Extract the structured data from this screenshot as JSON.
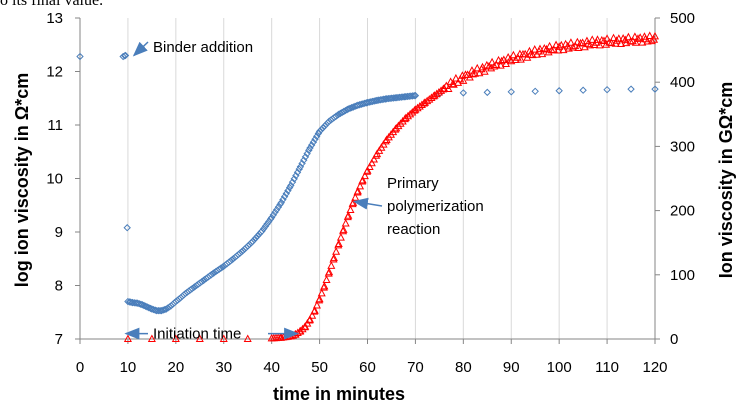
{
  "caption_fragment": "o its final value.",
  "chart_data": {
    "type": "scatter",
    "title": "",
    "xlabel": "time in minutes",
    "ylabel_left": "log ion viscosity in Ω*cm",
    "ylabel_right": "Ion viscosity in GΩ*cm",
    "xlim": [
      0,
      120
    ],
    "ylim_left": [
      7,
      13
    ],
    "ylim_right": [
      0,
      500
    ],
    "x_ticks": [
      0,
      10,
      20,
      30,
      40,
      50,
      60,
      70,
      80,
      90,
      100,
      110,
      120
    ],
    "y_left_ticks": [
      7,
      8,
      9,
      10,
      11,
      12,
      13
    ],
    "y_right_ticks": [
      0,
      100,
      200,
      300,
      400,
      500
    ],
    "grid": "vertical",
    "colors": {
      "log_series": "#4a7ebb",
      "linear_series": "#ff0000",
      "arrow": "#4a7ebb"
    },
    "series": [
      {
        "axis": "left",
        "marker": "diamond",
        "x": [
          0,
          9,
          9.5,
          10,
          10.5,
          11,
          12,
          13,
          14,
          15,
          16,
          17,
          18,
          19,
          20,
          21,
          22,
          24,
          26,
          28,
          30,
          32,
          34,
          36,
          38,
          40,
          42,
          44,
          46,
          48,
          50,
          52,
          54,
          56,
          58,
          60,
          62,
          64,
          66,
          68,
          70,
          75,
          80,
          85,
          90,
          95,
          100,
          105,
          110,
          115,
          120
        ],
        "y": [
          12.28,
          12.28,
          12.3,
          7.7,
          7.69,
          7.68,
          7.67,
          7.64,
          7.6,
          7.56,
          7.53,
          7.53,
          7.56,
          7.62,
          7.7,
          7.77,
          7.85,
          7.98,
          8.11,
          8.24,
          8.36,
          8.5,
          8.65,
          8.82,
          9.02,
          9.27,
          9.55,
          9.87,
          10.22,
          10.57,
          10.88,
          11.07,
          11.2,
          11.3,
          11.37,
          11.42,
          11.46,
          11.49,
          11.51,
          11.53,
          11.55,
          11.58,
          11.6,
          11.61,
          11.62,
          11.63,
          11.64,
          11.65,
          11.66,
          11.67,
          11.67
        ]
      },
      {
        "axis": "right",
        "marker": "triangle",
        "x": [
          10,
          15,
          20,
          25,
          30,
          35,
          40,
          42,
          44,
          45,
          46,
          47,
          48,
          49,
          50,
          51,
          52,
          53,
          54,
          55,
          56,
          57,
          58,
          59,
          60,
          62,
          64,
          66,
          68,
          70,
          72,
          74,
          76,
          78,
          80,
          82,
          84,
          86,
          88,
          90,
          92,
          94,
          96,
          98,
          100,
          102,
          104,
          106,
          108,
          110,
          112,
          114,
          116,
          118,
          120
        ],
        "y": [
          0,
          0,
          0,
          0,
          0,
          0,
          1,
          2,
          4,
          7,
          12,
          19,
          30,
          44,
          62,
          82,
          104,
          126,
          148,
          170,
          192,
          212,
          230,
          247,
          262,
          288,
          310,
          328,
          344,
          357,
          368,
          379,
          390,
          399,
          407,
          414,
          420,
          426,
          431,
          436,
          440,
          444,
          448,
          451,
          454,
          456,
          458,
          460,
          462,
          463,
          464,
          465,
          466,
          467,
          467
        ]
      }
    ],
    "annotations": [
      {
        "text": "Binder addition",
        "target_x": 10,
        "target_y_left": 12.3
      },
      {
        "text": "Initiation time",
        "target_x_start": 10,
        "target_x_end": 45,
        "y_left": 7.12
      },
      {
        "lines": [
          "Primary",
          "polymerization",
          "reaction"
        ],
        "target_x": 56,
        "target_y_left": 9.57
      }
    ]
  }
}
